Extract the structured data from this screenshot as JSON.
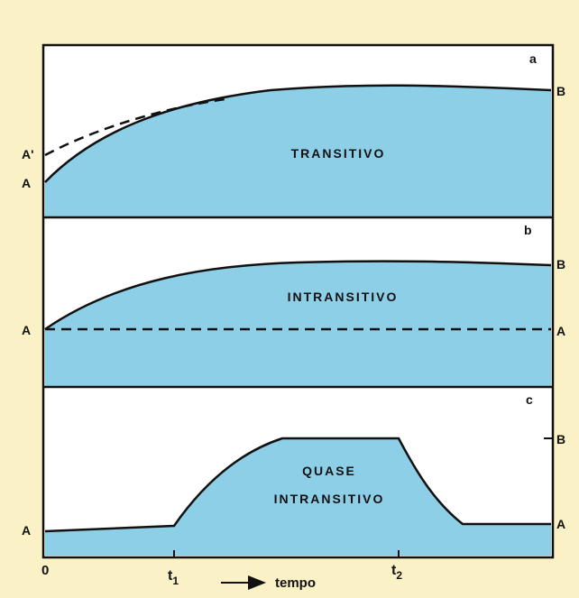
{
  "colors": {
    "background": "#fbf1c6",
    "fill": "#8ecfe8",
    "stroke": "#111111"
  },
  "panels": [
    {
      "id": "a",
      "letter": "a",
      "title": "TRANSITIVO",
      "left_labels": [
        "A'",
        "A"
      ],
      "right_labels": [
        "B"
      ]
    },
    {
      "id": "b",
      "letter": "b",
      "title": "INTRANSITIVO",
      "left_labels": [
        "A"
      ],
      "right_labels": [
        "B",
        "A"
      ]
    },
    {
      "id": "c",
      "letter": "c",
      "title_lines": [
        "QUASE",
        "INTRANSITIVO"
      ],
      "left_labels": [
        "A"
      ],
      "right_labels": [
        "B",
        "A"
      ]
    }
  ],
  "x_axis": {
    "ticks": [
      "0",
      "t",
      "t"
    ],
    "tick_subscripts": [
      "",
      "1",
      "2"
    ],
    "label": "tempo"
  }
}
